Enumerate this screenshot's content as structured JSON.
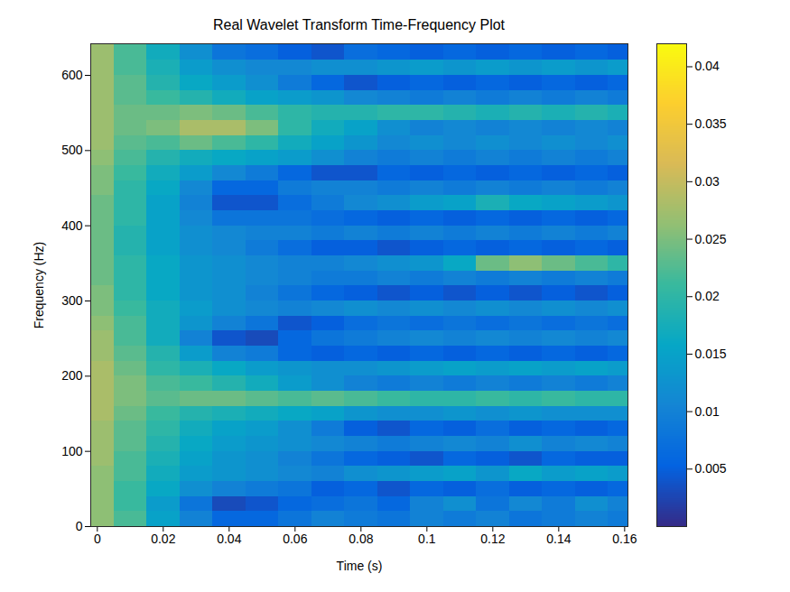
{
  "chart_data": {
    "type": "heatmap",
    "title": "Real Wavelet Transform Time-Frequency Plot",
    "x_label": "Time (s)",
    "y_label": "Frequency (Hz)",
    "xlim": [
      -0.002,
      0.161
    ],
    "ylim": [
      0,
      642
    ],
    "xticks": [
      0,
      0.02,
      0.04,
      0.06,
      0.08,
      0.1,
      0.12,
      0.14,
      0.16
    ],
    "yticks": [
      0,
      100,
      200,
      300,
      400,
      500,
      600
    ],
    "x_bins": [
      -0.002,
      0.005,
      0.015,
      0.025,
      0.035,
      0.045,
      0.055,
      0.065,
      0.075,
      0.085,
      0.095,
      0.105,
      0.115,
      0.125,
      0.135,
      0.145,
      0.155,
      0.161
    ],
    "y_bins": [
      0,
      20,
      40,
      60,
      80,
      100,
      120,
      140,
      160,
      180,
      200,
      220,
      240,
      260,
      280,
      300,
      320,
      340,
      360,
      380,
      400,
      420,
      440,
      460,
      480,
      500,
      520,
      540,
      560,
      580,
      600,
      620,
      642
    ],
    "values": [
      [
        0.026,
        0.022,
        0.015,
        0.01,
        0.006,
        0.006,
        0.008,
        0.01,
        0.009,
        0.008,
        0.01,
        0.009,
        0.01,
        0.008,
        0.009,
        0.01,
        0.009
      ],
      [
        0.026,
        0.021,
        0.014,
        0.008,
        0.003,
        0.004,
        0.006,
        0.007,
        0.008,
        0.006,
        0.01,
        0.012,
        0.008,
        0.011,
        0.009,
        0.012,
        0.01
      ],
      [
        0.026,
        0.021,
        0.016,
        0.012,
        0.01,
        0.009,
        0.008,
        0.005,
        0.006,
        0.004,
        0.006,
        0.005,
        0.007,
        0.005,
        0.006,
        0.005,
        0.006
      ],
      [
        0.026,
        0.022,
        0.017,
        0.014,
        0.013,
        0.012,
        0.011,
        0.01,
        0.012,
        0.013,
        0.014,
        0.015,
        0.013,
        0.016,
        0.014,
        0.015,
        0.014
      ],
      [
        0.027,
        0.022,
        0.018,
        0.015,
        0.013,
        0.012,
        0.01,
        0.008,
        0.006,
        0.005,
        0.004,
        0.006,
        0.005,
        0.004,
        0.006,
        0.005,
        0.005
      ],
      [
        0.027,
        0.023,
        0.019,
        0.016,
        0.014,
        0.013,
        0.012,
        0.011,
        0.01,
        0.009,
        0.01,
        0.011,
        0.01,
        0.012,
        0.01,
        0.011,
        0.01
      ],
      [
        0.027,
        0.023,
        0.02,
        0.017,
        0.015,
        0.014,
        0.012,
        0.009,
        0.005,
        0.004,
        0.006,
        0.005,
        0.007,
        0.005,
        0.006,
        0.005,
        0.006
      ],
      [
        0.028,
        0.024,
        0.021,
        0.019,
        0.018,
        0.017,
        0.016,
        0.015,
        0.013,
        0.012,
        0.012,
        0.013,
        0.012,
        0.013,
        0.012,
        0.012,
        0.012
      ],
      [
        0.028,
        0.025,
        0.023,
        0.024,
        0.024,
        0.023,
        0.022,
        0.023,
        0.022,
        0.021,
        0.02,
        0.02,
        0.021,
        0.02,
        0.021,
        0.02,
        0.02
      ],
      [
        0.028,
        0.025,
        0.022,
        0.021,
        0.019,
        0.017,
        0.014,
        0.012,
        0.01,
        0.009,
        0.01,
        0.009,
        0.01,
        0.009,
        0.01,
        0.009,
        0.01
      ],
      [
        0.028,
        0.024,
        0.02,
        0.018,
        0.016,
        0.014,
        0.013,
        0.012,
        0.012,
        0.013,
        0.014,
        0.015,
        0.014,
        0.015,
        0.014,
        0.015,
        0.014
      ],
      [
        0.027,
        0.023,
        0.019,
        0.014,
        0.01,
        0.009,
        0.006,
        0.005,
        0.006,
        0.005,
        0.006,
        0.005,
        0.006,
        0.005,
        0.006,
        0.005,
        0.006
      ],
      [
        0.027,
        0.022,
        0.017,
        0.01,
        0.004,
        0.003,
        0.006,
        0.008,
        0.009,
        0.01,
        0.011,
        0.01,
        0.011,
        0.01,
        0.011,
        0.01,
        0.011
      ],
      [
        0.026,
        0.022,
        0.017,
        0.013,
        0.01,
        0.008,
        0.004,
        0.005,
        0.007,
        0.008,
        0.007,
        0.008,
        0.007,
        0.008,
        0.007,
        0.008,
        0.007
      ],
      [
        0.025,
        0.021,
        0.017,
        0.014,
        0.012,
        0.011,
        0.01,
        0.011,
        0.012,
        0.011,
        0.012,
        0.011,
        0.012,
        0.011,
        0.012,
        0.011,
        0.012
      ],
      [
        0.025,
        0.02,
        0.016,
        0.013,
        0.012,
        0.01,
        0.008,
        0.006,
        0.005,
        0.004,
        0.005,
        0.004,
        0.005,
        0.004,
        0.005,
        0.004,
        0.005
      ],
      [
        0.024,
        0.02,
        0.016,
        0.013,
        0.012,
        0.011,
        0.01,
        0.009,
        0.009,
        0.01,
        0.009,
        0.01,
        0.009,
        0.01,
        0.009,
        0.01,
        0.009
      ],
      [
        0.024,
        0.02,
        0.016,
        0.013,
        0.012,
        0.011,
        0.01,
        0.01,
        0.011,
        0.012,
        0.013,
        0.016,
        0.024,
        0.026,
        0.024,
        0.022,
        0.02
      ],
      [
        0.024,
        0.019,
        0.015,
        0.012,
        0.011,
        0.009,
        0.007,
        0.005,
        0.005,
        0.004,
        0.005,
        0.006,
        0.005,
        0.006,
        0.005,
        0.006,
        0.005
      ],
      [
        0.024,
        0.019,
        0.015,
        0.012,
        0.011,
        0.01,
        0.01,
        0.009,
        0.01,
        0.009,
        0.01,
        0.009,
        0.01,
        0.009,
        0.01,
        0.009,
        0.01
      ],
      [
        0.024,
        0.02,
        0.015,
        0.011,
        0.008,
        0.008,
        0.008,
        0.007,
        0.006,
        0.005,
        0.006,
        0.005,
        0.006,
        0.005,
        0.006,
        0.005,
        0.006
      ],
      [
        0.024,
        0.02,
        0.015,
        0.01,
        0.004,
        0.004,
        0.007,
        0.009,
        0.011,
        0.012,
        0.014,
        0.015,
        0.018,
        0.016,
        0.015,
        0.014,
        0.013
      ],
      [
        0.025,
        0.02,
        0.016,
        0.011,
        0.006,
        0.006,
        0.009,
        0.01,
        0.01,
        0.009,
        0.01,
        0.009,
        0.01,
        0.009,
        0.01,
        0.009,
        0.01
      ],
      [
        0.025,
        0.021,
        0.017,
        0.014,
        0.011,
        0.009,
        0.006,
        0.004,
        0.004,
        0.006,
        0.005,
        0.006,
        0.005,
        0.006,
        0.005,
        0.006,
        0.005
      ],
      [
        0.026,
        0.022,
        0.019,
        0.017,
        0.016,
        0.015,
        0.014,
        0.012,
        0.01,
        0.009,
        0.01,
        0.009,
        0.01,
        0.009,
        0.01,
        0.009,
        0.01
      ],
      [
        0.027,
        0.023,
        0.022,
        0.024,
        0.022,
        0.02,
        0.017,
        0.015,
        0.013,
        0.011,
        0.012,
        0.011,
        0.012,
        0.011,
        0.012,
        0.011,
        0.012
      ],
      [
        0.027,
        0.024,
        0.025,
        0.028,
        0.028,
        0.025,
        0.02,
        0.017,
        0.015,
        0.012,
        0.01,
        0.011,
        0.01,
        0.011,
        0.01,
        0.011,
        0.01
      ],
      [
        0.027,
        0.024,
        0.024,
        0.025,
        0.024,
        0.022,
        0.02,
        0.019,
        0.019,
        0.02,
        0.02,
        0.019,
        0.018,
        0.019,
        0.018,
        0.019,
        0.018
      ],
      [
        0.027,
        0.023,
        0.021,
        0.019,
        0.017,
        0.015,
        0.014,
        0.013,
        0.011,
        0.01,
        0.009,
        0.01,
        0.009,
        0.01,
        0.009,
        0.01,
        0.009
      ],
      [
        0.027,
        0.023,
        0.019,
        0.016,
        0.014,
        0.012,
        0.009,
        0.006,
        0.004,
        0.005,
        0.006,
        0.005,
        0.006,
        0.005,
        0.006,
        0.005,
        0.006
      ],
      [
        0.027,
        0.022,
        0.018,
        0.014,
        0.012,
        0.011,
        0.011,
        0.012,
        0.012,
        0.013,
        0.014,
        0.013,
        0.014,
        0.013,
        0.014,
        0.013,
        0.014
      ],
      [
        0.027,
        0.022,
        0.017,
        0.012,
        0.008,
        0.007,
        0.005,
        0.004,
        0.007,
        0.006,
        0.005,
        0.006,
        0.005,
        0.006,
        0.005,
        0.006,
        0.005
      ]
    ],
    "colorbar": {
      "range": [
        0,
        0.042
      ],
      "ticks": [
        0.005,
        0.01,
        0.015,
        0.02,
        0.025,
        0.03,
        0.035,
        0.04
      ]
    }
  }
}
